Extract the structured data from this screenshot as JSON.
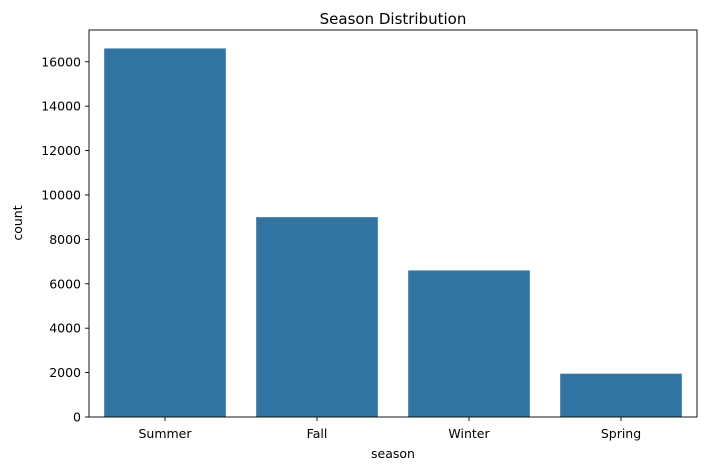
{
  "chart_data": {
    "type": "bar",
    "title": "Season Distribution",
    "xlabel": "season",
    "ylabel": "count",
    "categories": [
      "Summer",
      "Fall",
      "Winter",
      "Spring"
    ],
    "values": [
      16600,
      9000,
      6600,
      1950
    ],
    "ylim": [
      0,
      17430
    ],
    "yticks": [
      0,
      2000,
      4000,
      6000,
      8000,
      10000,
      12000,
      14000,
      16000
    ],
    "bar_color": "#3274a1",
    "grid": false
  }
}
